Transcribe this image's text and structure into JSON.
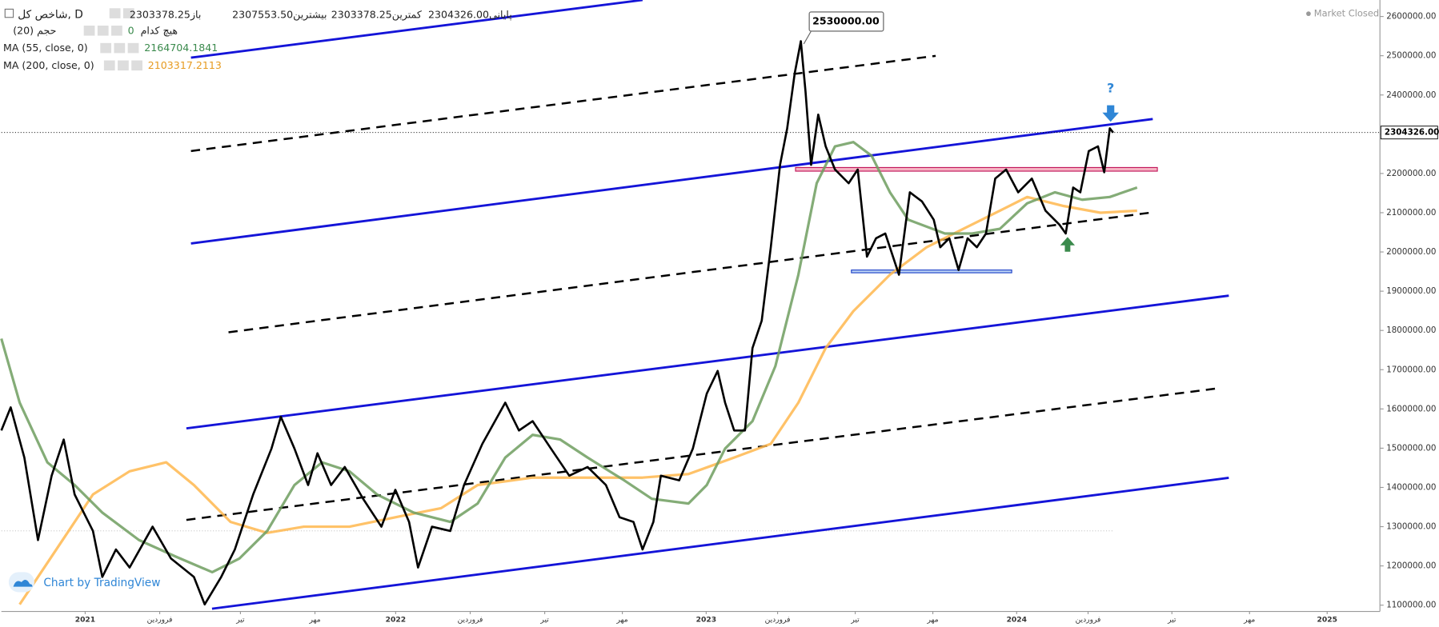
{
  "chart_data": {
    "type": "line",
    "title": "شاخص کل, D",
    "ohlc": [
      {
        "label": "باز",
        "value": "2303378.25"
      },
      {
        "label": "بیشترین",
        "value": "2307553.50"
      },
      {
        "label": "کمترین",
        "value": "2303378.25"
      },
      {
        "label": "پایانی",
        "value": "2304326.00"
      }
    ],
    "volume": {
      "name": "حجم (20)",
      "setting": "هیچ کدام",
      "value": "0"
    },
    "status": "Market Closed",
    "watermark": "Chart by TradingView",
    "annotation": {
      "value": 2530000,
      "label": "2530000.00"
    },
    "question_mark": "?",
    "last_price": {
      "value": 2304326,
      "label": "2304326.00"
    },
    "xlim": [
      2020.73,
      2025.17
    ],
    "ylim": [
      1084000,
      2642000
    ],
    "grid": false,
    "yticks": [
      {
        "value": 1100000,
        "label": "1100000.00"
      },
      {
        "value": 1200000,
        "label": "1200000.00"
      },
      {
        "value": 1300000,
        "label": "1300000.00"
      },
      {
        "value": 1400000,
        "label": "1400000.00"
      },
      {
        "value": 1500000,
        "label": "1500000.00"
      },
      {
        "value": 1600000,
        "label": "1600000.00"
      },
      {
        "value": 1700000,
        "label": "1700000.00"
      },
      {
        "value": 1800000,
        "label": "1800000.00"
      },
      {
        "value": 1900000,
        "label": "1900000.00"
      },
      {
        "value": 2000000,
        "label": "2000000.00"
      },
      {
        "value": 2100000,
        "label": "2100000.00"
      },
      {
        "value": 2200000,
        "label": "2200000.00"
      },
      {
        "value": 2300000,
        "label": "2300000.00"
      },
      {
        "value": 2400000,
        "label": "2400000.00"
      },
      {
        "value": 2500000,
        "label": "2500000.00"
      },
      {
        "value": 2600000,
        "label": "2600000.00"
      }
    ],
    "xticks": [
      2021,
      {
        "value": 2021.24,
        "label": "فروردین"
      },
      {
        "value": 2021.5,
        "label": "تیر"
      },
      {
        "value": 2021.74,
        "label": "مهر"
      },
      2022,
      {
        "value": 2022.24,
        "label": "فروردین"
      },
      {
        "value": 2022.48,
        "label": "تیر"
      },
      {
        "value": 2022.73,
        "label": "مهر"
      },
      2023,
      {
        "value": 2023.23,
        "label": "فروردین"
      },
      {
        "value": 2023.48,
        "label": "تیر"
      },
      {
        "value": 2023.73,
        "label": "مهر"
      },
      2024,
      {
        "value": 2024.23,
        "label": "فروردین"
      },
      {
        "value": 2024.5,
        "label": "تیر"
      },
      {
        "value": 2024.75,
        "label": "مهر"
      },
      2025
    ],
    "series": [
      {
        "name": "شاخص کل, D",
        "color": "#000000",
        "x": [
          2020.73,
          2020.76,
          2020.804,
          2020.848,
          2020.892,
          2020.931,
          2020.966,
          2021.025,
          2021.055,
          2021.099,
          2021.143,
          2021.217,
          2021.276,
          2021.35,
          2021.385,
          2021.438,
          2021.482,
          2021.541,
          2021.6,
          2021.63,
          2021.674,
          2021.718,
          2021.748,
          2021.792,
          2021.836,
          2021.895,
          2021.954,
          2021.999,
          2022.043,
          2022.072,
          2022.117,
          2022.176,
          2022.22,
          2022.279,
          2022.353,
          2022.397,
          2022.441,
          2022.5,
          2022.559,
          2022.618,
          2022.677,
          2022.721,
          2022.766,
          2022.795,
          2022.83,
          2022.854,
          2022.913,
          2022.957,
          2023.002,
          2023.037,
          2023.061,
          2023.09,
          2023.125,
          2023.149,
          2023.179,
          2023.208,
          2023.238,
          2023.261,
          2023.285,
          2023.305,
          2023.32,
          2023.338,
          2023.361,
          2023.385,
          2023.415,
          2023.459,
          2023.488,
          2023.518,
          2023.547,
          2023.577,
          2023.621,
          2023.656,
          2023.695,
          2023.733,
          2023.754,
          2023.783,
          2023.813,
          2023.842,
          2023.872,
          2023.901,
          2023.931,
          2023.966,
          2024.005,
          2024.049,
          2024.093,
          2024.137,
          2024.158,
          2024.182,
          2024.205,
          2024.232,
          2024.262,
          2024.282,
          2024.3,
          2024.311
        ],
        "values": [
          1545000,
          1604000,
          1476000,
          1266000,
          1430000,
          1522000,
          1382000,
          1289000,
          1172000,
          1242000,
          1196000,
          1300000,
          1219000,
          1172000,
          1102000,
          1172000,
          1242000,
          1382000,
          1499000,
          1580000,
          1499000,
          1406000,
          1487000,
          1406000,
          1452000,
          1371000,
          1300000,
          1394000,
          1312000,
          1196000,
          1300000,
          1289000,
          1406000,
          1511000,
          1616000,
          1545000,
          1569000,
          1499000,
          1430000,
          1452000,
          1406000,
          1324000,
          1312000,
          1242000,
          1312000,
          1430000,
          1418000,
          1499000,
          1639000,
          1697000,
          1616000,
          1545000,
          1545000,
          1755000,
          1825000,
          2012000,
          2222000,
          2315000,
          2455000,
          2537000,
          2409000,
          2222000,
          2350000,
          2269000,
          2210000,
          2175000,
          2210000,
          1988000,
          2035000,
          2047000,
          1942000,
          2152000,
          2129000,
          2082000,
          2012000,
          2035000,
          1954000,
          2035000,
          2012000,
          2047000,
          2187000,
          2210000,
          2152000,
          2187000,
          2105000,
          2070000,
          2047000,
          2164000,
          2152000,
          2257000,
          2269000,
          2203000,
          2315000,
          2304000
        ]
      },
      {
        "name": "MA (55, close, 0)",
        "color": "#6f9e5f",
        "legend_value": "2164704.1841",
        "x": [
          2020.73,
          2020.789,
          2020.878,
          2020.966,
          2021.055,
          2021.173,
          2021.291,
          2021.409,
          2021.497,
          2021.586,
          2021.674,
          2021.763,
          2021.851,
          2021.94,
          2022.058,
          2022.176,
          2022.264,
          2022.353,
          2022.441,
          2022.53,
          2022.618,
          2022.736,
          2022.825,
          2022.943,
          2023.002,
          2023.061,
          2023.149,
          2023.223,
          2023.297,
          2023.356,
          2023.415,
          2023.474,
          2023.533,
          2023.592,
          2023.651,
          2023.769,
          2023.857,
          2023.946,
          2024.034,
          2024.123,
          2024.211,
          2024.3,
          2024.388
        ],
        "values": [
          1779000,
          1616000,
          1464000,
          1406000,
          1336000,
          1266000,
          1224000,
          1184000,
          1219000,
          1289000,
          1406000,
          1464000,
          1441000,
          1382000,
          1336000,
          1312000,
          1359000,
          1476000,
          1534000,
          1522000,
          1476000,
          1418000,
          1371000,
          1359000,
          1406000,
          1499000,
          1569000,
          1709000,
          1942000,
          2175000,
          2269000,
          2280000,
          2245000,
          2152000,
          2082000,
          2047000,
          2047000,
          2059000,
          2124000,
          2152000,
          2133000,
          2140000,
          2164000
        ]
      },
      {
        "name": "MA (200, close, 0)",
        "color": "#ffb74d",
        "legend_value": "2103317.2113",
        "x": [
          2020.789,
          2020.907,
          2021.025,
          2021.143,
          2021.261,
          2021.35,
          2021.468,
          2021.586,
          2021.704,
          2021.851,
          2021.999,
          2022.146,
          2022.264,
          2022.441,
          2022.618,
          2022.795,
          2022.943,
          2023.09,
          2023.208,
          2023.297,
          2023.385,
          2023.474,
          2023.592,
          2023.71,
          2023.828,
          2023.946,
          2024.034,
          2024.152,
          2024.27,
          2024.388
        ],
        "values": [
          1102000,
          1242000,
          1382000,
          1441000,
          1464000,
          1406000,
          1312000,
          1284000,
          1300000,
          1300000,
          1324000,
          1347000,
          1406000,
          1425000,
          1425000,
          1425000,
          1434000,
          1476000,
          1511000,
          1616000,
          1755000,
          1849000,
          1942000,
          2012000,
          2059000,
          2105000,
          2140000,
          2117000,
          2100000,
          2105000
        ]
      }
    ]
  }
}
